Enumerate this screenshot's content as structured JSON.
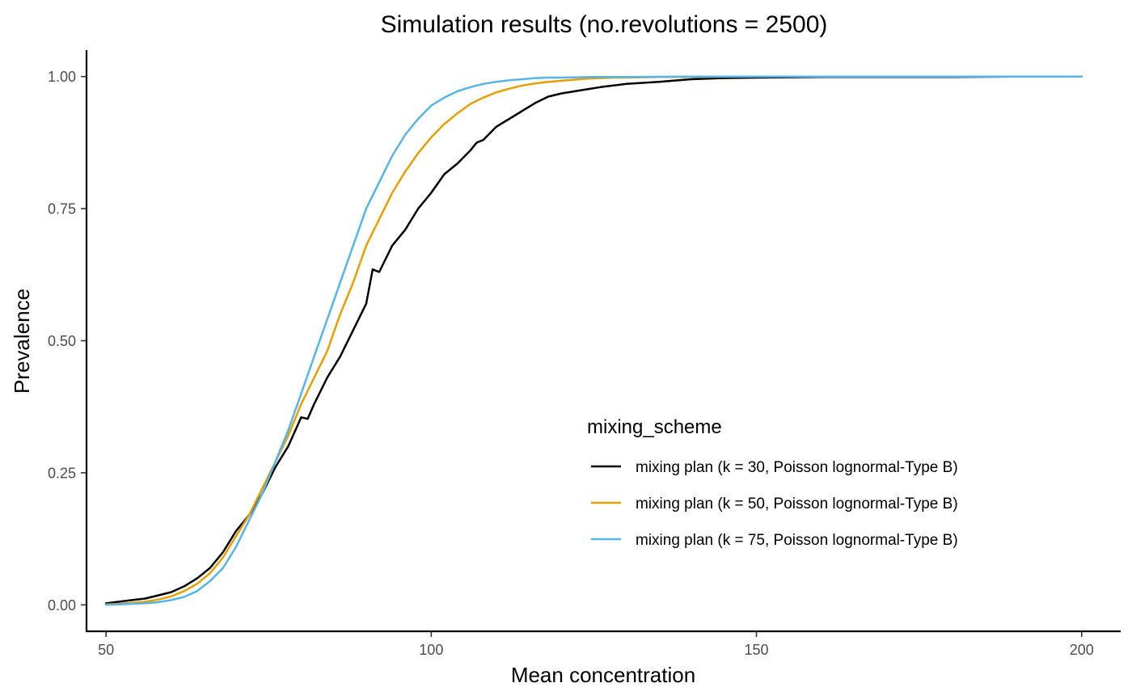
{
  "chart_data": {
    "type": "line",
    "title": "Simulation results (no.revolutions = 2500)",
    "xlabel": "Mean concentration",
    "ylabel": "Prevalence",
    "xlim": [
      47,
      206
    ],
    "ylim": [
      -0.05,
      1.05
    ],
    "xticks": [
      50,
      100,
      150,
      200
    ],
    "xtick_labels": [
      "50",
      "100",
      "150",
      "200"
    ],
    "yticks": [
      0,
      0.25,
      0.5,
      0.75,
      1
    ],
    "ytick_labels": [
      "0.00",
      "0.25",
      "0.50",
      "0.75",
      "1.00"
    ],
    "grid": false,
    "legend": {
      "title": "mixing_scheme",
      "placement": "inside-bottom-right"
    },
    "series": [
      {
        "name": "mixing plan (k = 30, Poisson lognormal-Type B)",
        "color": "#000000",
        "x": [
          50,
          52,
          54,
          56,
          58,
          60,
          62,
          64,
          66,
          68,
          70,
          72,
          74,
          76,
          78,
          80,
          81,
          82,
          84,
          86,
          88,
          90,
          91,
          92,
          94,
          96,
          98,
          100,
          102,
          104,
          106,
          107,
          108,
          110,
          112,
          114,
          116,
          118,
          120,
          122,
          124,
          126,
          128,
          130,
          135,
          140,
          145,
          150,
          160,
          170,
          180,
          190,
          200
        ],
        "y": [
          0.003,
          0.006,
          0.009,
          0.012,
          0.018,
          0.024,
          0.035,
          0.05,
          0.07,
          0.1,
          0.14,
          0.17,
          0.21,
          0.26,
          0.3,
          0.355,
          0.352,
          0.38,
          0.43,
          0.47,
          0.52,
          0.57,
          0.635,
          0.63,
          0.68,
          0.71,
          0.75,
          0.78,
          0.815,
          0.835,
          0.86,
          0.875,
          0.88,
          0.905,
          0.92,
          0.935,
          0.95,
          0.962,
          0.968,
          0.972,
          0.976,
          0.98,
          0.983,
          0.986,
          0.99,
          0.995,
          0.997,
          0.998,
          0.999,
          0.999,
          0.999,
          1.0,
          1.0
        ]
      },
      {
        "name": "mixing plan (k = 50, Poisson lognormal-Type B)",
        "color": "#E69F00",
        "x": [
          50,
          52,
          54,
          56,
          58,
          60,
          62,
          64,
          66,
          68,
          70,
          72,
          74,
          76,
          78,
          80,
          82,
          84,
          86,
          88,
          90,
          92,
          94,
          96,
          98,
          100,
          102,
          104,
          106,
          108,
          110,
          112,
          114,
          116,
          118,
          120,
          122,
          124,
          126,
          128,
          130,
          135,
          140,
          150,
          160,
          170,
          180,
          190,
          200
        ],
        "y": [
          0.001,
          0.002,
          0.004,
          0.006,
          0.01,
          0.016,
          0.026,
          0.04,
          0.06,
          0.09,
          0.13,
          0.17,
          0.22,
          0.27,
          0.32,
          0.38,
          0.43,
          0.48,
          0.55,
          0.61,
          0.68,
          0.73,
          0.78,
          0.82,
          0.855,
          0.885,
          0.91,
          0.93,
          0.948,
          0.96,
          0.97,
          0.977,
          0.983,
          0.987,
          0.99,
          0.992,
          0.994,
          0.996,
          0.997,
          0.998,
          0.998,
          0.999,
          0.999,
          1.0,
          1.0,
          1.0,
          1.0,
          1.0,
          1.0
        ]
      },
      {
        "name": "mixing plan (k = 75, Poisson lognormal-Type B)",
        "color": "#56B4E9",
        "x": [
          50,
          52,
          54,
          56,
          58,
          60,
          62,
          64,
          66,
          68,
          70,
          72,
          74,
          76,
          78,
          80,
          82,
          84,
          86,
          88,
          90,
          92,
          94,
          96,
          98,
          100,
          102,
          104,
          106,
          108,
          110,
          112,
          114,
          116,
          118,
          120,
          125,
          130,
          140,
          150,
          160,
          170,
          180,
          190,
          200
        ],
        "y": [
          0.0,
          0.001,
          0.002,
          0.003,
          0.005,
          0.009,
          0.015,
          0.026,
          0.045,
          0.07,
          0.11,
          0.16,
          0.21,
          0.27,
          0.33,
          0.4,
          0.47,
          0.54,
          0.61,
          0.68,
          0.75,
          0.8,
          0.85,
          0.89,
          0.92,
          0.945,
          0.96,
          0.972,
          0.98,
          0.986,
          0.99,
          0.993,
          0.995,
          0.997,
          0.998,
          0.998,
          0.999,
          0.999,
          1.0,
          1.0,
          1.0,
          1.0,
          1.0,
          1.0,
          1.0
        ]
      }
    ]
  }
}
